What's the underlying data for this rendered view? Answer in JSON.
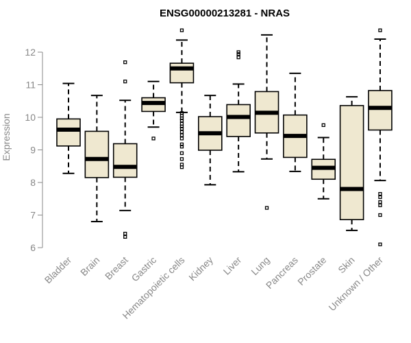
{
  "chart_data": {
    "type": "boxplot",
    "title": "ENSG00000213281 - NRAS",
    "ylabel": "Expression",
    "xlabel": "",
    "ylim": [
      6,
      12.7
    ],
    "yticks": [
      6,
      7,
      8,
      9,
      10,
      11,
      12
    ],
    "colors": {
      "box_fill": "#efe8d0",
      "stroke": "#000000",
      "axis": "#888888"
    },
    "categories": [
      "Bladder",
      "Brain",
      "Breast",
      "Gastric",
      "Hematopoietic cells",
      "Kidney",
      "Liver",
      "Lung",
      "Pancreas",
      "Prostate",
      "Skin",
      "Unknown / Other"
    ],
    "boxes": [
      {
        "min": 8.28,
        "q1": 9.12,
        "median": 9.62,
        "q3": 9.95,
        "max": 11.04,
        "outliers": []
      },
      {
        "min": 6.8,
        "q1": 8.15,
        "median": 8.72,
        "q3": 9.57,
        "max": 10.67,
        "outliers": []
      },
      {
        "min": 7.14,
        "q1": 8.16,
        "median": 8.48,
        "q3": 9.19,
        "max": 10.52,
        "outliers": [
          6.33,
          6.43,
          11.1,
          11.69
        ]
      },
      {
        "min": 9.7,
        "q1": 10.18,
        "median": 10.44,
        "q3": 10.6,
        "max": 11.1,
        "outliers": [
          9.35
        ]
      },
      {
        "min": 10.15,
        "q1": 11.06,
        "median": 11.5,
        "q3": 11.66,
        "max": 12.37,
        "outliers": [
          12.67,
          8.47,
          8.55,
          8.72,
          8.9,
          9.1,
          9.17,
          9.35,
          9.45,
          9.55,
          9.65,
          9.72,
          9.8,
          9.9,
          9.97,
          10.05,
          10.13
        ]
      },
      {
        "min": 7.93,
        "q1": 8.99,
        "median": 9.51,
        "q3": 10.02,
        "max": 10.67,
        "outliers": []
      },
      {
        "min": 8.33,
        "q1": 9.41,
        "median": 10.01,
        "q3": 10.39,
        "max": 11.02,
        "outliers": [
          11.84,
          11.94,
          12.0
        ]
      },
      {
        "min": 8.72,
        "q1": 9.52,
        "median": 10.14,
        "q3": 10.79,
        "max": 12.53,
        "outliers": [
          7.22
        ]
      },
      {
        "min": 8.34,
        "q1": 8.77,
        "median": 9.43,
        "q3": 10.07,
        "max": 11.35,
        "outliers": []
      },
      {
        "min": 7.5,
        "q1": 8.1,
        "median": 8.45,
        "q3": 8.71,
        "max": 9.38,
        "outliers": [
          9.76
        ]
      },
      {
        "min": 6.53,
        "q1": 6.86,
        "median": 7.8,
        "q3": 10.36,
        "max": 10.63,
        "outliers": []
      },
      {
        "min": 8.06,
        "q1": 9.61,
        "median": 10.29,
        "q3": 10.82,
        "max": 12.4,
        "outliers": [
          12.67,
          7.65,
          7.55,
          7.4,
          7.3,
          7.0,
          6.1
        ]
      }
    ]
  }
}
